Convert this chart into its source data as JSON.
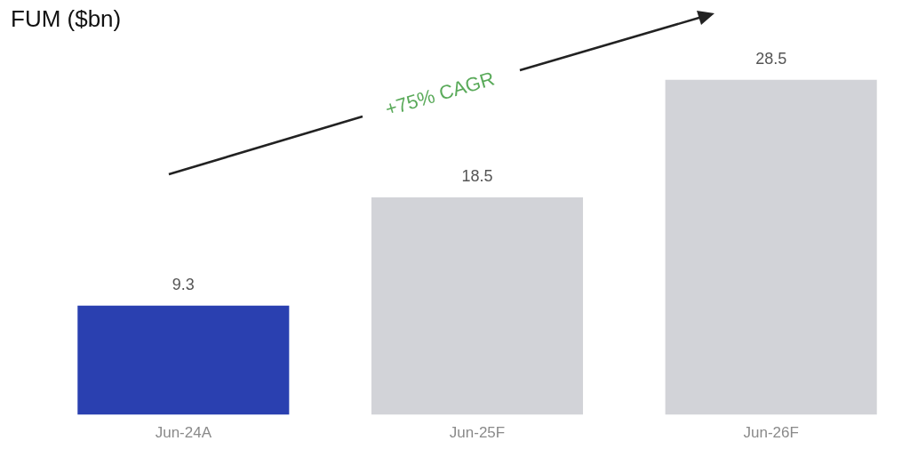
{
  "chart_data": {
    "type": "bar",
    "title": "FUM ($bn)",
    "categories": [
      "Jun-24A",
      "Jun-25F",
      "Jun-26F"
    ],
    "values": [
      9.3,
      18.5,
      28.5
    ],
    "colors": [
      "#2a40b0",
      "#d2d3d8",
      "#d2d3d8"
    ],
    "data_labels": true,
    "grid": false,
    "legend": false,
    "annotations": [
      "+75% CAGR"
    ]
  }
}
